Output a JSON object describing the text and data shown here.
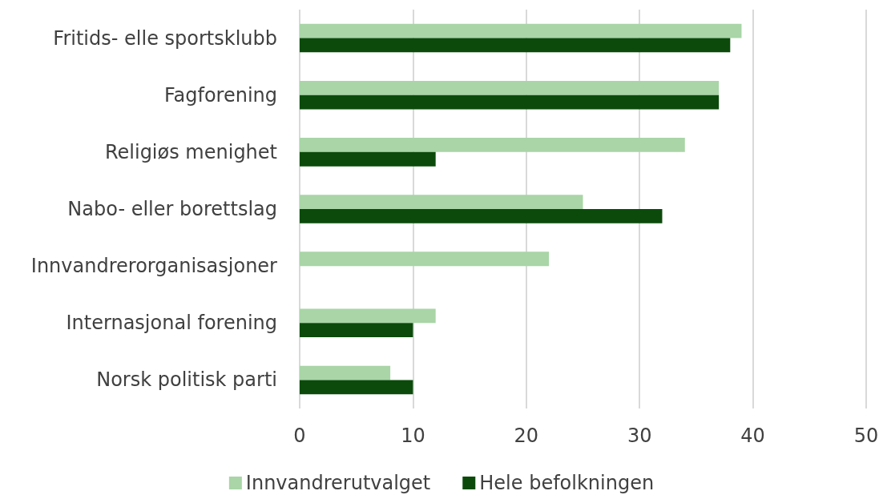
{
  "chart_data": {
    "type": "bar",
    "orientation": "horizontal",
    "categories": [
      "Fritids- elle sportsklubb",
      "Fagforening",
      "Religiøs menighet",
      "Nabo- eller borettslag",
      "Innvandrerorganisasjoner",
      "Internasjonal forening",
      "Norsk politisk parti"
    ],
    "series": [
      {
        "name": "Innvandrerutvalget",
        "color": "#a9d5a7",
        "values": [
          39,
          37,
          34,
          25,
          22,
          12,
          8
        ]
      },
      {
        "name": "Hele befolkningen",
        "color": "#0b4a0b",
        "values": [
          38,
          37,
          12,
          32,
          null,
          10,
          10
        ]
      }
    ],
    "xlim": [
      0,
      50
    ],
    "xticks": [
      0,
      10,
      20,
      30,
      40,
      50
    ],
    "grid": "x",
    "legend": "bottom"
  }
}
